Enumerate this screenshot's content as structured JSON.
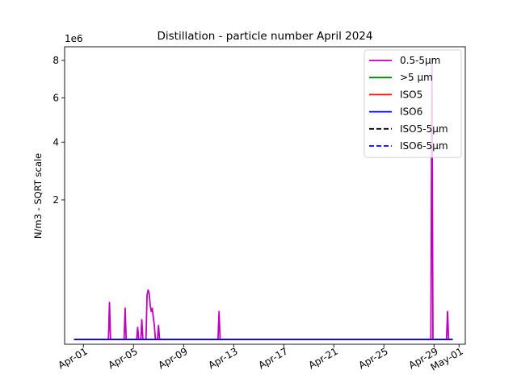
{
  "chart_data": {
    "type": "line",
    "title": "Distillation - particle number April 2024",
    "xlabel": "",
    "ylabel": "N/m3 - SQRT scale",
    "y_scale": "sqrt",
    "y_offset_text": "1e6",
    "xlim": [
      "2024-03-30T12:00",
      "2024-05-01T12:00"
    ],
    "ylim": [
      0,
      8.8
    ],
    "x_ticks": [
      {
        "date": "2024-04-01",
        "label": "Apr-01"
      },
      {
        "date": "2024-04-05",
        "label": "Apr-05"
      },
      {
        "date": "2024-04-09",
        "label": "Apr-09"
      },
      {
        "date": "2024-04-13",
        "label": "Apr-13"
      },
      {
        "date": "2024-04-17",
        "label": "Apr-17"
      },
      {
        "date": "2024-04-21",
        "label": "Apr-21"
      },
      {
        "date": "2024-04-25",
        "label": "Apr-25"
      },
      {
        "date": "2024-04-29",
        "label": "Apr-29"
      },
      {
        "date": "2024-05-01",
        "label": "May-01"
      }
    ],
    "y_ticks": [
      {
        "value": 2,
        "label": "2"
      },
      {
        "value": 4,
        "label": "4"
      },
      {
        "value": 6,
        "label": "6"
      },
      {
        "value": 8,
        "label": "8"
      }
    ],
    "grid": false,
    "legend_position": "top-right",
    "series": [
      {
        "name": "0.5-5µm",
        "color": "#bf00bf",
        "style": "solid",
        "points": [
          [
            "2024-03-31T06:00",
            0.0
          ],
          [
            "2024-04-03T00:00",
            0.0
          ],
          [
            "2024-04-03T02:00",
            0.14
          ],
          [
            "2024-04-03T04:00",
            0.0
          ],
          [
            "2024-04-04T06:00",
            0.0
          ],
          [
            "2024-04-04T08:00",
            0.1
          ],
          [
            "2024-04-04T10:00",
            0.0
          ],
          [
            "2024-04-05T06:00",
            0.0
          ],
          [
            "2024-04-05T08:00",
            0.015
          ],
          [
            "2024-04-05T10:00",
            0.0
          ],
          [
            "2024-04-05T14:00",
            0.0
          ],
          [
            "2024-04-05T16:00",
            0.04
          ],
          [
            "2024-04-05T18:00",
            0.0
          ],
          [
            "2024-04-06T00:00",
            0.0
          ],
          [
            "2024-04-06T02:00",
            0.2
          ],
          [
            "2024-04-06T04:00",
            0.25
          ],
          [
            "2024-04-06T06:00",
            0.22
          ],
          [
            "2024-04-06T08:00",
            0.12
          ],
          [
            "2024-04-06T10:00",
            0.08
          ],
          [
            "2024-04-06T12:00",
            0.1
          ],
          [
            "2024-04-06T14:00",
            0.05
          ],
          [
            "2024-04-06T16:00",
            0.02
          ],
          [
            "2024-04-06T18:00",
            0.0
          ],
          [
            "2024-04-06T22:00",
            0.0
          ],
          [
            "2024-04-07T00:00",
            0.02
          ],
          [
            "2024-04-07T02:00",
            0.0
          ],
          [
            "2024-04-11T18:00",
            0.0
          ],
          [
            "2024-04-11T20:00",
            0.08
          ],
          [
            "2024-04-11T22:00",
            0.0
          ],
          [
            "2024-04-28T18:00",
            0.0
          ],
          [
            "2024-04-28T20:00",
            8.1
          ],
          [
            "2024-04-28T22:00",
            0.0
          ],
          [
            "2024-04-30T00:00",
            0.0
          ],
          [
            "2024-04-30T02:00",
            0.08
          ],
          [
            "2024-04-30T04:00",
            0.0
          ]
        ]
      },
      {
        "name": ">5 µm",
        "color": "#008000",
        "style": "solid",
        "points": [
          [
            "2024-03-31T06:00",
            0.0
          ],
          [
            "2024-04-30T12:00",
            0.0
          ]
        ]
      },
      {
        "name": "ISO5",
        "color": "#ff0000",
        "style": "solid",
        "points": [
          [
            "2024-03-31T06:00",
            0.0
          ],
          [
            "2024-04-30T12:00",
            0.0
          ]
        ]
      },
      {
        "name": "ISO6",
        "color": "#0000ff",
        "style": "solid",
        "points": [
          [
            "2024-03-31T06:00",
            0.0
          ],
          [
            "2024-04-30T12:00",
            0.0
          ]
        ]
      },
      {
        "name": "ISO5-5µm",
        "color": "#000000",
        "style": "dashed",
        "points": []
      },
      {
        "name": "ISO6-5µm",
        "color": "#0000ff",
        "style": "dashed",
        "points": []
      }
    ]
  }
}
